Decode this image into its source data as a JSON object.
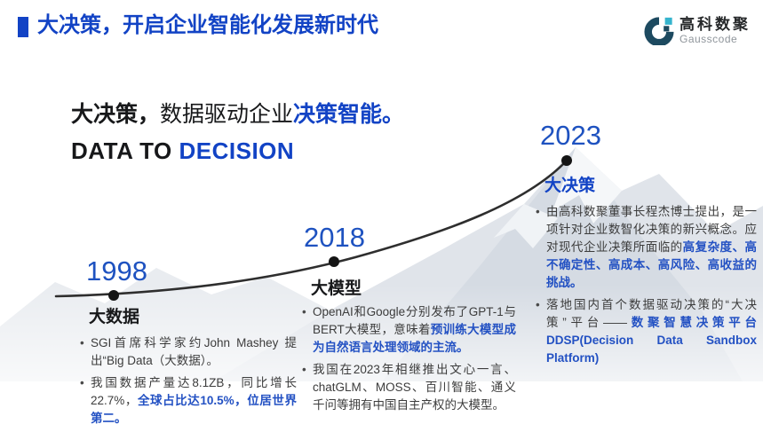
{
  "colors": {
    "accent_blue": "#1243c5",
    "year_blue": "#1e52c0",
    "highlight_blue": "#2351c3",
    "body_text": "#3c3c3c",
    "logo_dark": "#1d4a60",
    "logo_cyan": "#35b4cd",
    "curve": "#2e2e2e"
  },
  "header": {
    "title": "大决策，开启企业智能化发展新时代",
    "logo": {
      "name": "高科数聚",
      "subtitle": "Gausscode"
    }
  },
  "hero": {
    "line1": [
      {
        "text": "大决策，",
        "style": "bold-dark"
      },
      {
        "text": "数据驱动企业",
        "style": "dark"
      },
      {
        "text": "决策智能。",
        "style": "bold-blue"
      }
    ],
    "line2": [
      {
        "text": "DATA TO ",
        "style": "bold-dark"
      },
      {
        "text": "DECISION",
        "style": "bold-blue"
      }
    ]
  },
  "timeline": {
    "milestones": [
      {
        "year": "1998",
        "title": "大数据",
        "title_emphasis": false,
        "bullets": [
          [
            {
              "text": "SGI首席科学家约John Mashey 提出“Big Data（大数据）。",
              "style": "normal"
            }
          ],
          [
            {
              "text": "我国数据产量达8.1ZB，同比增长22.7%，",
              "style": "normal"
            },
            {
              "text": "全球占比达10.5%，位居世界第二。",
              "style": "highlight"
            }
          ]
        ]
      },
      {
        "year": "2018",
        "title": "大模型",
        "title_emphasis": false,
        "bullets": [
          [
            {
              "text": "OpenAI和Google分别发布了GPT-1与BERT大模型，意味着",
              "style": "normal"
            },
            {
              "text": "预训练大模型成为自然语言处理领域的主流。",
              "style": "highlight"
            }
          ],
          [
            {
              "text": "我国在2023年相继推出文心一言、chatGLM、MOSS、百川智能、通义千问等拥有中国自主产权的大模型。",
              "style": "normal"
            }
          ]
        ]
      },
      {
        "year": "2023",
        "title": "大决策",
        "title_emphasis": true,
        "bullets": [
          [
            {
              "text": "由高科数聚董事长程杰博士提出，是一项针对企业数智化决策的新兴概念。应对现代企业决策所面临的",
              "style": "normal"
            },
            {
              "text": "高复杂度、高不确定性、高成本、高风险、高收益的挑战。",
              "style": "highlight"
            }
          ],
          [
            {
              "text": "落地国内首个数据驱动决策的“大决策”平台——",
              "style": "normal"
            },
            {
              "text": "数聚智慧决策平台DDSP(Decision Data Sandbox Platform)",
              "style": "highlight"
            }
          ]
        ]
      }
    ]
  }
}
